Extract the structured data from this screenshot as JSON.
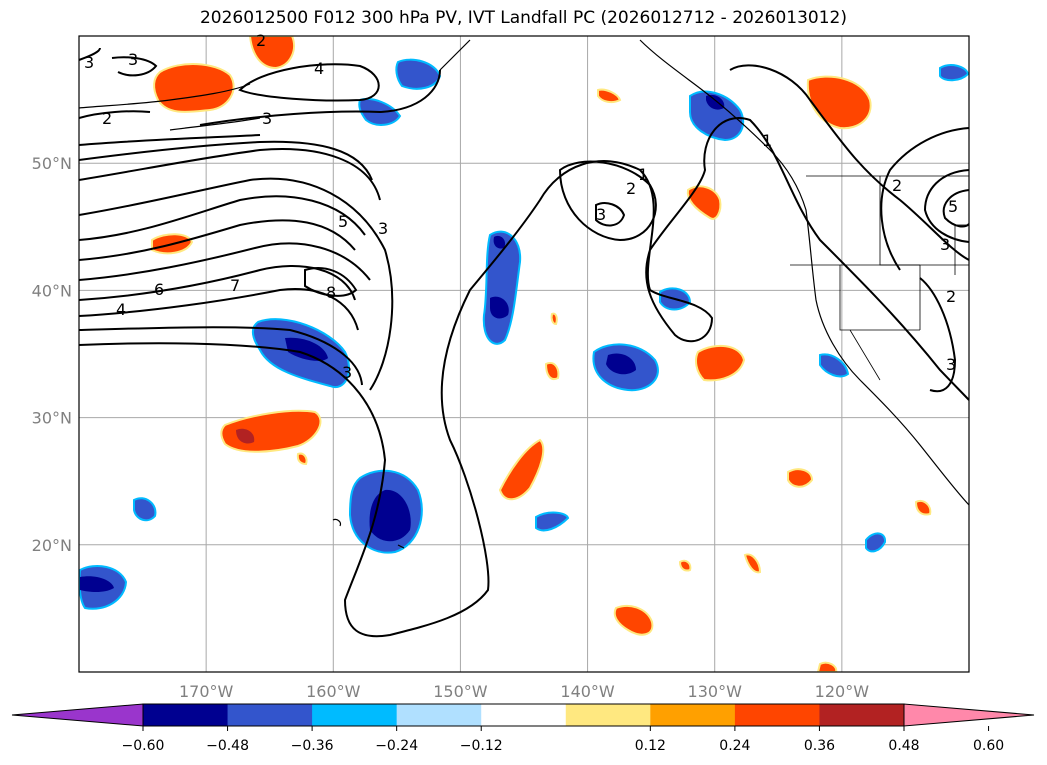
{
  "title": "2026012500 F012 300 hPa PV, IVT Landfall PC (2026012712 - 2026013012)",
  "map": {
    "lon_range": [
      -180,
      -110
    ],
    "lat_range": [
      10,
      60
    ],
    "lon_ticks": [
      {
        "lon": -170,
        "label": "170°W"
      },
      {
        "lon": -160,
        "label": "160°W"
      },
      {
        "lon": -150,
        "label": "150°W"
      },
      {
        "lon": -140,
        "label": "140°W"
      },
      {
        "lon": -130,
        "label": "130°W"
      },
      {
        "lon": -120,
        "label": "120°W"
      }
    ],
    "lat_ticks": [
      {
        "lat": 50,
        "label": "50°N"
      },
      {
        "lat": 40,
        "label": "40°N"
      },
      {
        "lat": 30,
        "label": "30°N"
      },
      {
        "lat": 20,
        "label": "20°N"
      }
    ],
    "grid": true,
    "pv_contour_labels": [
      "3",
      "3",
      "4",
      "2",
      "3",
      "2",
      "5",
      "3",
      "7",
      "8",
      "6",
      "4",
      "3",
      "3",
      "2",
      "1",
      "1",
      "2",
      "5",
      "3",
      "2",
      "3"
    ]
  },
  "colorbar": {
    "colors": [
      "#9a35cc",
      "#000090",
      "#3355cc",
      "#00bbff",
      "#b0e0ff",
      "#ffffff",
      "#ffe880",
      "#ffa000",
      "#ff4500",
      "#b22222",
      "#ff88aa"
    ],
    "ticks": [
      "−0.60",
      "−0.48",
      "−0.36",
      "−0.24",
      "−0.12",
      "0.12",
      "0.24",
      "0.36",
      "0.48",
      "0.60"
    ]
  }
}
